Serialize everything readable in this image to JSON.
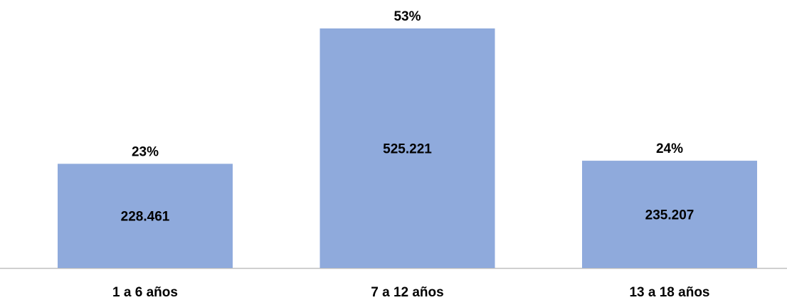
{
  "chart_data": {
    "type": "bar",
    "categories": [
      "1 a 6 años",
      "7 a 12 años",
      "13 a 18 años"
    ],
    "values": [
      228461,
      525221,
      235207
    ],
    "value_labels": [
      "228.461",
      "525.221",
      "235.207"
    ],
    "annotations": [
      "23%",
      "53%",
      "24%"
    ],
    "color": "#8faadc"
  }
}
